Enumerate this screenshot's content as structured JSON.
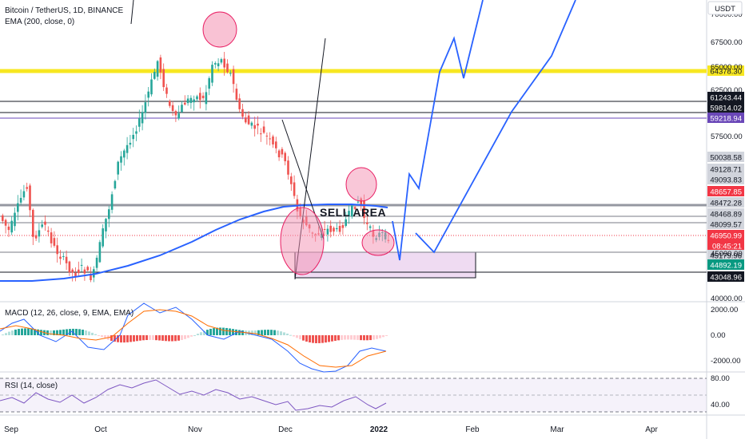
{
  "header": {
    "title": "Bitcoin / TetherUS, 1D, BINANCE",
    "ema_label": "EMA (200, close, 0)",
    "currency": "USDT"
  },
  "panes": {
    "macd_label": "MACD (12, 26, close, 9, EMA, EMA)",
    "rsi_label": "RSI (14, close)"
  },
  "annotations": {
    "sell_area": "SELL AREA"
  },
  "chart_data": {
    "type": "candlestick",
    "y_axis_ticks": [
      "70000.00",
      "67500.00",
      "65000.00",
      "62500.00",
      "57500.00",
      "45000.00",
      "40000.00"
    ],
    "x_axis_labels": [
      "Sep",
      "Oct",
      "Nov",
      "Dec",
      "2022",
      "Feb",
      "Mar",
      "Apr"
    ],
    "price_tags": [
      {
        "text": "64378.30",
        "color": "#f7e721",
        "text_color": "#131722"
      },
      {
        "text": "61243.44",
        "color": "#131722",
        "text_color": "#ffffff"
      },
      {
        "text": "59814.02",
        "color": "#131722",
        "text_color": "#ffffff"
      },
      {
        "text": "59218.94",
        "color": "#6a47b8",
        "text_color": "#ffffff"
      },
      {
        "text": "50038.58",
        "color": "#d1d4dc",
        "text_color": "#131722"
      },
      {
        "text": "49128.71",
        "color": "#d1d4dc",
        "text_color": "#131722"
      },
      {
        "text": "49093.83",
        "color": "#d1d4dc",
        "text_color": "#131722"
      },
      {
        "text": "48657.85",
        "color": "#f23645",
        "text_color": "#ffffff"
      },
      {
        "text": "48472.28",
        "color": "#d1d4dc",
        "text_color": "#131722"
      },
      {
        "text": "48468.89",
        "color": "#d1d4dc",
        "text_color": "#131722"
      },
      {
        "text": "48099.57",
        "color": "#d1d4dc",
        "text_color": "#131722"
      },
      {
        "text": "46950.99",
        "color": "#f23645",
        "text_color": "#ffffff"
      },
      {
        "text": "08:45:21",
        "color": "#f23645",
        "text_color": "#ffffff"
      },
      {
        "text": "45179.96",
        "color": "#d1d4dc",
        "text_color": "#131722"
      },
      {
        "text": "44892.19",
        "color": "#089981",
        "text_color": "#ffffff"
      },
      {
        "text": "43048.96",
        "color": "#131722",
        "text_color": "#ffffff"
      }
    ],
    "macd_ticks": [
      "2000.00",
      "0.00",
      "-2000.00"
    ],
    "rsi_ticks": [
      "80.00",
      "40.00"
    ],
    "colors": {
      "up": "#26a69a",
      "down": "#ef5350",
      "ema": "#2962ff",
      "projection": "#2962ff",
      "level_yellow": "#f7e721"
    }
  }
}
